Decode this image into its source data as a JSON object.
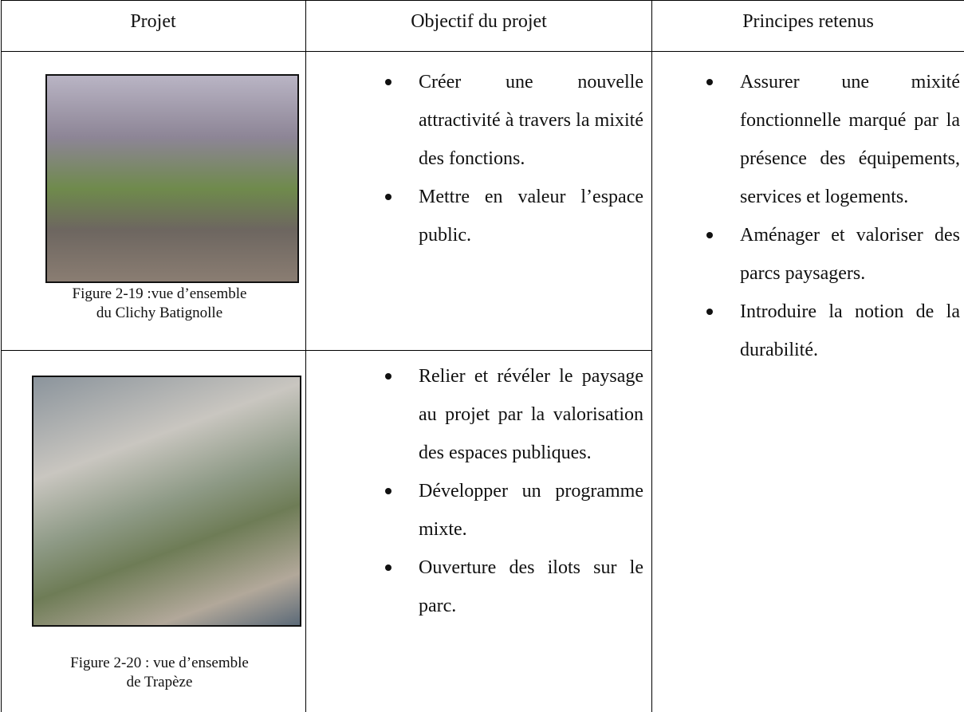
{
  "table": {
    "headers": [
      "Projet",
      "Objectif du projet",
      "Principes retenus"
    ],
    "rows": [
      {
        "caption_lines": [
          "Figure 2-19 :vue d’ensemble",
          "du Clichy Batignolle"
        ],
        "objectives": [
          "Créer une nouvelle attractivité à travers la mixité des fonctions.",
          "Mettre en valeur l’espace public."
        ]
      },
      {
        "caption_lines": [
          "Figure 2-20 : vue d’ensemble",
          "de Trapèze"
        ],
        "objectives": [
          "Relier et révéler le paysage au projet par la valorisation des espaces publiques.",
          "Développer un programme mixte.",
          "Ouverture des ilots sur le parc."
        ]
      }
    ],
    "principles": [
      "Assurer une mixité fonctionnelle marqué par la présence des équipements, services et logements.",
      "Aménager et valoriser des parcs paysagers.",
      "Introduire la notion de la durabilité."
    ]
  }
}
